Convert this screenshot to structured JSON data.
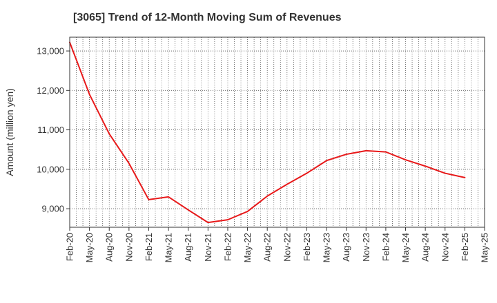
{
  "chart_data": {
    "type": "line",
    "title": "[3065]  Trend of 12-Month Moving Sum of Revenues",
    "xlabel": "",
    "ylabel": "Amount (million yen)",
    "x_ticks": [
      "Feb-20",
      "May-20",
      "Aug-20",
      "Nov-20",
      "Feb-21",
      "May-21",
      "Aug-21",
      "Nov-21",
      "Feb-22",
      "May-22",
      "Aug-22",
      "Nov-22",
      "Feb-23",
      "May-23",
      "Aug-23",
      "Nov-23",
      "Feb-24",
      "May-24",
      "Aug-24",
      "Nov-24",
      "Feb-25",
      "May-25"
    ],
    "y_ticks": [
      9000,
      10000,
      11000,
      12000,
      13000
    ],
    "y_tick_labels": [
      "9,000",
      "10,000",
      "11,000",
      "12,000",
      "13,000"
    ],
    "ylim": [
      8530,
      13350
    ],
    "grid": true,
    "series": [
      {
        "color": "#e8191a",
        "points": [
          {
            "x": "Feb-20",
            "y": 13220
          },
          {
            "x": "May-20",
            "y": 11900
          },
          {
            "x": "Aug-20",
            "y": 10900
          },
          {
            "x": "Nov-20",
            "y": 10150
          },
          {
            "x": "Feb-21",
            "y": 9230
          },
          {
            "x": "May-21",
            "y": 9300
          },
          {
            "x": "Aug-21",
            "y": 8970
          },
          {
            "x": "Nov-21",
            "y": 8650
          },
          {
            "x": "Feb-22",
            "y": 8720
          },
          {
            "x": "May-22",
            "y": 8930
          },
          {
            "x": "Aug-22",
            "y": 9320
          },
          {
            "x": "Nov-22",
            "y": 9620
          },
          {
            "x": "Feb-23",
            "y": 9900
          },
          {
            "x": "May-23",
            "y": 10220
          },
          {
            "x": "Aug-23",
            "y": 10380
          },
          {
            "x": "Nov-23",
            "y": 10470
          },
          {
            "x": "Feb-24",
            "y": 10440
          },
          {
            "x": "May-24",
            "y": 10240
          },
          {
            "x": "Aug-24",
            "y": 10080
          },
          {
            "x": "Nov-24",
            "y": 9900
          },
          {
            "x": "Feb-25",
            "y": 9790
          }
        ]
      }
    ]
  }
}
